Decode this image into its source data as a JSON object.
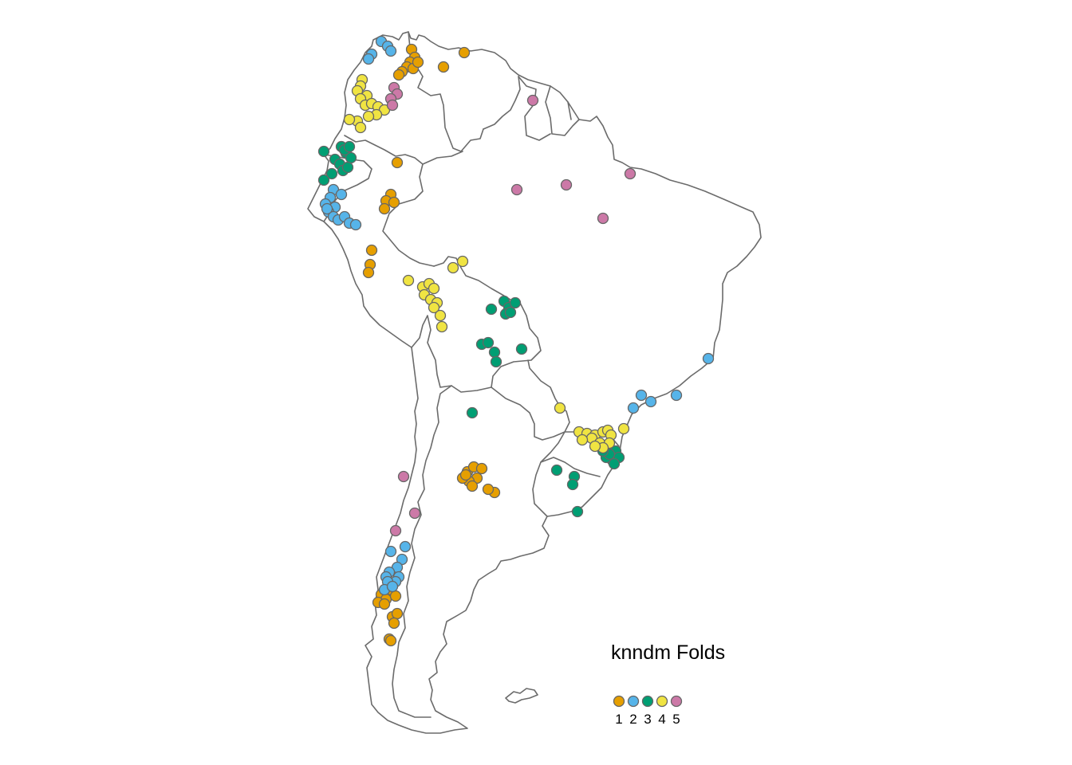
{
  "legend": {
    "title": "knndm Folds",
    "items": [
      {
        "label": "1",
        "color": "#E69F00"
      },
      {
        "label": "2",
        "color": "#56B4E9"
      },
      {
        "label": "3",
        "color": "#009E73"
      },
      {
        "label": "4",
        "color": "#F0E442"
      },
      {
        "label": "5",
        "color": "#CC79A7"
      }
    ]
  },
  "map": {
    "region": "South America",
    "basemap": "country borders outline",
    "point_outline_color": "#666666",
    "folds": [
      "1",
      "2",
      "3",
      "4",
      "5"
    ]
  }
}
